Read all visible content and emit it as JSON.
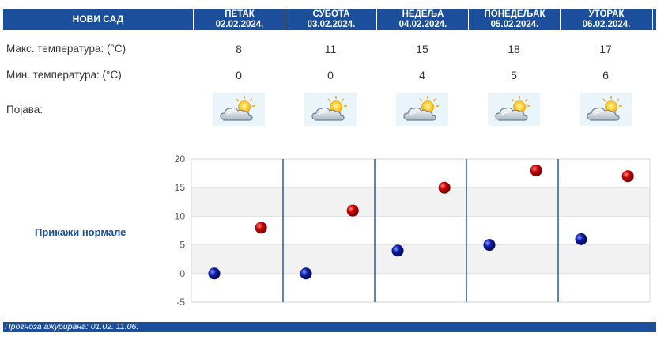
{
  "header": {
    "city": "НОВИ САД",
    "days": [
      {
        "name": "ПЕТАК",
        "date": "02.02.2024."
      },
      {
        "name": "СУБОТА",
        "date": "03.02.2024."
      },
      {
        "name": "НЕДЕЉА",
        "date": "04.02.2024."
      },
      {
        "name": "ПОНЕДЕЉАК",
        "date": "05.02.2024."
      },
      {
        "name": "УТОРАК",
        "date": "06.02.2024."
      }
    ]
  },
  "rows": {
    "max_label": "Макс. температура: (°C)",
    "min_label": "Мин. температура: (°C)",
    "phenomenon_label": "Појава:",
    "max_values": [
      "8",
      "11",
      "15",
      "18",
      "17"
    ],
    "min_values": [
      "0",
      "0",
      "4",
      "5",
      "6"
    ],
    "icons": [
      "partly-cloudy-sun-icon",
      "partly-cloudy-sun-icon",
      "partly-cloudy-sun-icon",
      "partly-cloudy-sun-icon",
      "partly-cloudy-sun-icon"
    ]
  },
  "normals_link": "Прикажи нормале",
  "footer": {
    "text": "Прогноза ажурирана:  01.02. 11:06."
  },
  "colors": {
    "header_bg": "#1b4f9c",
    "max_marker": "#cc0000",
    "min_marker": "#0a1aa8",
    "band": "#f2f2f2",
    "separator": "#1b4f9c"
  },
  "chart_data": {
    "type": "scatter",
    "title": "",
    "xlabel": "",
    "ylabel": "",
    "ylim": [
      -5,
      20
    ],
    "yticks": [
      20,
      15,
      10,
      5,
      0,
      -5
    ],
    "categories": [
      "02.02.2024.",
      "03.02.2024.",
      "04.02.2024.",
      "05.02.2024.",
      "06.02.2024."
    ],
    "series": [
      {
        "name": "Мин. температура",
        "values": [
          0,
          0,
          4,
          5,
          6
        ]
      },
      {
        "name": "Макс. температура",
        "values": [
          8,
          11,
          15,
          18,
          17
        ]
      }
    ]
  }
}
